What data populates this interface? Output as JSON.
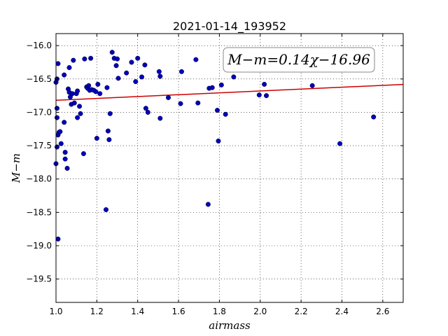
{
  "chart_data": {
    "type": "scatter",
    "title": "2021-01-14_193952",
    "xlabel": "airmass",
    "ylabel": "M−m",
    "xlim": [
      1.0,
      2.7
    ],
    "ylim": [
      -19.85,
      -15.82
    ],
    "y_inverted": false,
    "grid": true,
    "xticks": [
      1.0,
      1.2,
      1.4,
      1.6,
      1.8,
      2.0,
      2.2,
      2.4,
      2.6
    ],
    "xtick_labels": [
      "1.0",
      "1.2",
      "1.4",
      "1.6",
      "1.8",
      "2.0",
      "2.2",
      "2.4",
      "2.6"
    ],
    "yticks": [
      -16.0,
      -16.5,
      -17.0,
      -17.5,
      -18.0,
      -18.5,
      -19.0,
      -19.5
    ],
    "ytick_labels": [
      "−16.0",
      "−16.5",
      "−17.0",
      "−17.5",
      "−18.0",
      "−18.5",
      "−19.0",
      "−19.5"
    ],
    "annotation": "M−m=0.14χ−16.96",
    "fit": {
      "slope": 0.14,
      "intercept": -16.96,
      "color": "#cc0000"
    },
    "point_color": "#0000bb",
    "points": [
      [
        1.0,
        -16.55
      ],
      [
        1.005,
        -16.5
      ],
      [
        1.005,
        -16.94
      ],
      [
        1.005,
        -17.08
      ],
      [
        1.0,
        -17.77
      ],
      [
        1.005,
        -17.52
      ],
      [
        1.01,
        -16.27
      ],
      [
        1.01,
        -17.34
      ],
      [
        1.015,
        -17.3
      ],
      [
        1.02,
        -17.29
      ],
      [
        1.01,
        -18.9
      ],
      [
        1.025,
        -17.47
      ],
      [
        1.04,
        -16.44
      ],
      [
        1.04,
        -17.15
      ],
      [
        1.045,
        -17.6
      ],
      [
        1.045,
        -17.7
      ],
      [
        1.055,
        -17.84
      ],
      [
        1.06,
        -16.65
      ],
      [
        1.065,
        -16.7
      ],
      [
        1.065,
        -16.33
      ],
      [
        1.07,
        -16.77
      ],
      [
        1.075,
        -16.88
      ],
      [
        1.08,
        -16.72
      ],
      [
        1.085,
        -16.22
      ],
      [
        1.09,
        -16.86
      ],
      [
        1.1,
        -16.72
      ],
      [
        1.105,
        -16.68
      ],
      [
        1.105,
        -17.08
      ],
      [
        1.115,
        -16.91
      ],
      [
        1.12,
        -17.02
      ],
      [
        1.135,
        -17.62
      ],
      [
        1.14,
        -16.2
      ],
      [
        1.15,
        -16.62
      ],
      [
        1.155,
        -16.64
      ],
      [
        1.16,
        -16.6
      ],
      [
        1.165,
        -16.67
      ],
      [
        1.17,
        -16.19
      ],
      [
        1.175,
        -16.66
      ],
      [
        1.185,
        -16.67
      ],
      [
        1.195,
        -16.69
      ],
      [
        1.2,
        -17.39
      ],
      [
        1.205,
        -16.58
      ],
      [
        1.215,
        -16.72
      ],
      [
        1.245,
        -18.46
      ],
      [
        1.25,
        -16.63
      ],
      [
        1.255,
        -17.28
      ],
      [
        1.26,
        -17.41
      ],
      [
        1.265,
        -17.02
      ],
      [
        1.275,
        -16.1
      ],
      [
        1.285,
        -16.19
      ],
      [
        1.295,
        -16.3
      ],
      [
        1.3,
        -16.2
      ],
      [
        1.305,
        -16.49
      ],
      [
        1.345,
        -16.41
      ],
      [
        1.37,
        -16.25
      ],
      [
        1.39,
        -16.54
      ],
      [
        1.4,
        -16.19
      ],
      [
        1.42,
        -16.47
      ],
      [
        1.435,
        -16.29
      ],
      [
        1.44,
        -16.94
      ],
      [
        1.45,
        -17.0
      ],
      [
        1.505,
        -16.39
      ],
      [
        1.51,
        -16.46
      ],
      [
        1.51,
        -17.09
      ],
      [
        1.55,
        -16.78
      ],
      [
        1.61,
        -16.87
      ],
      [
        1.615,
        -16.39
      ],
      [
        1.685,
        -16.21
      ],
      [
        1.695,
        -16.86
      ],
      [
        1.745,
        -18.38
      ],
      [
        1.75,
        -16.64
      ],
      [
        1.765,
        -16.63
      ],
      [
        1.79,
        -16.97
      ],
      [
        1.795,
        -17.43
      ],
      [
        1.81,
        -16.59
      ],
      [
        1.83,
        -17.03
      ],
      [
        1.87,
        -16.47
      ],
      [
        1.995,
        -16.74
      ],
      [
        2.02,
        -16.58
      ],
      [
        2.03,
        -16.75
      ],
      [
        2.255,
        -16.6
      ],
      [
        2.39,
        -17.47
      ],
      [
        2.555,
        -17.07
      ]
    ]
  }
}
